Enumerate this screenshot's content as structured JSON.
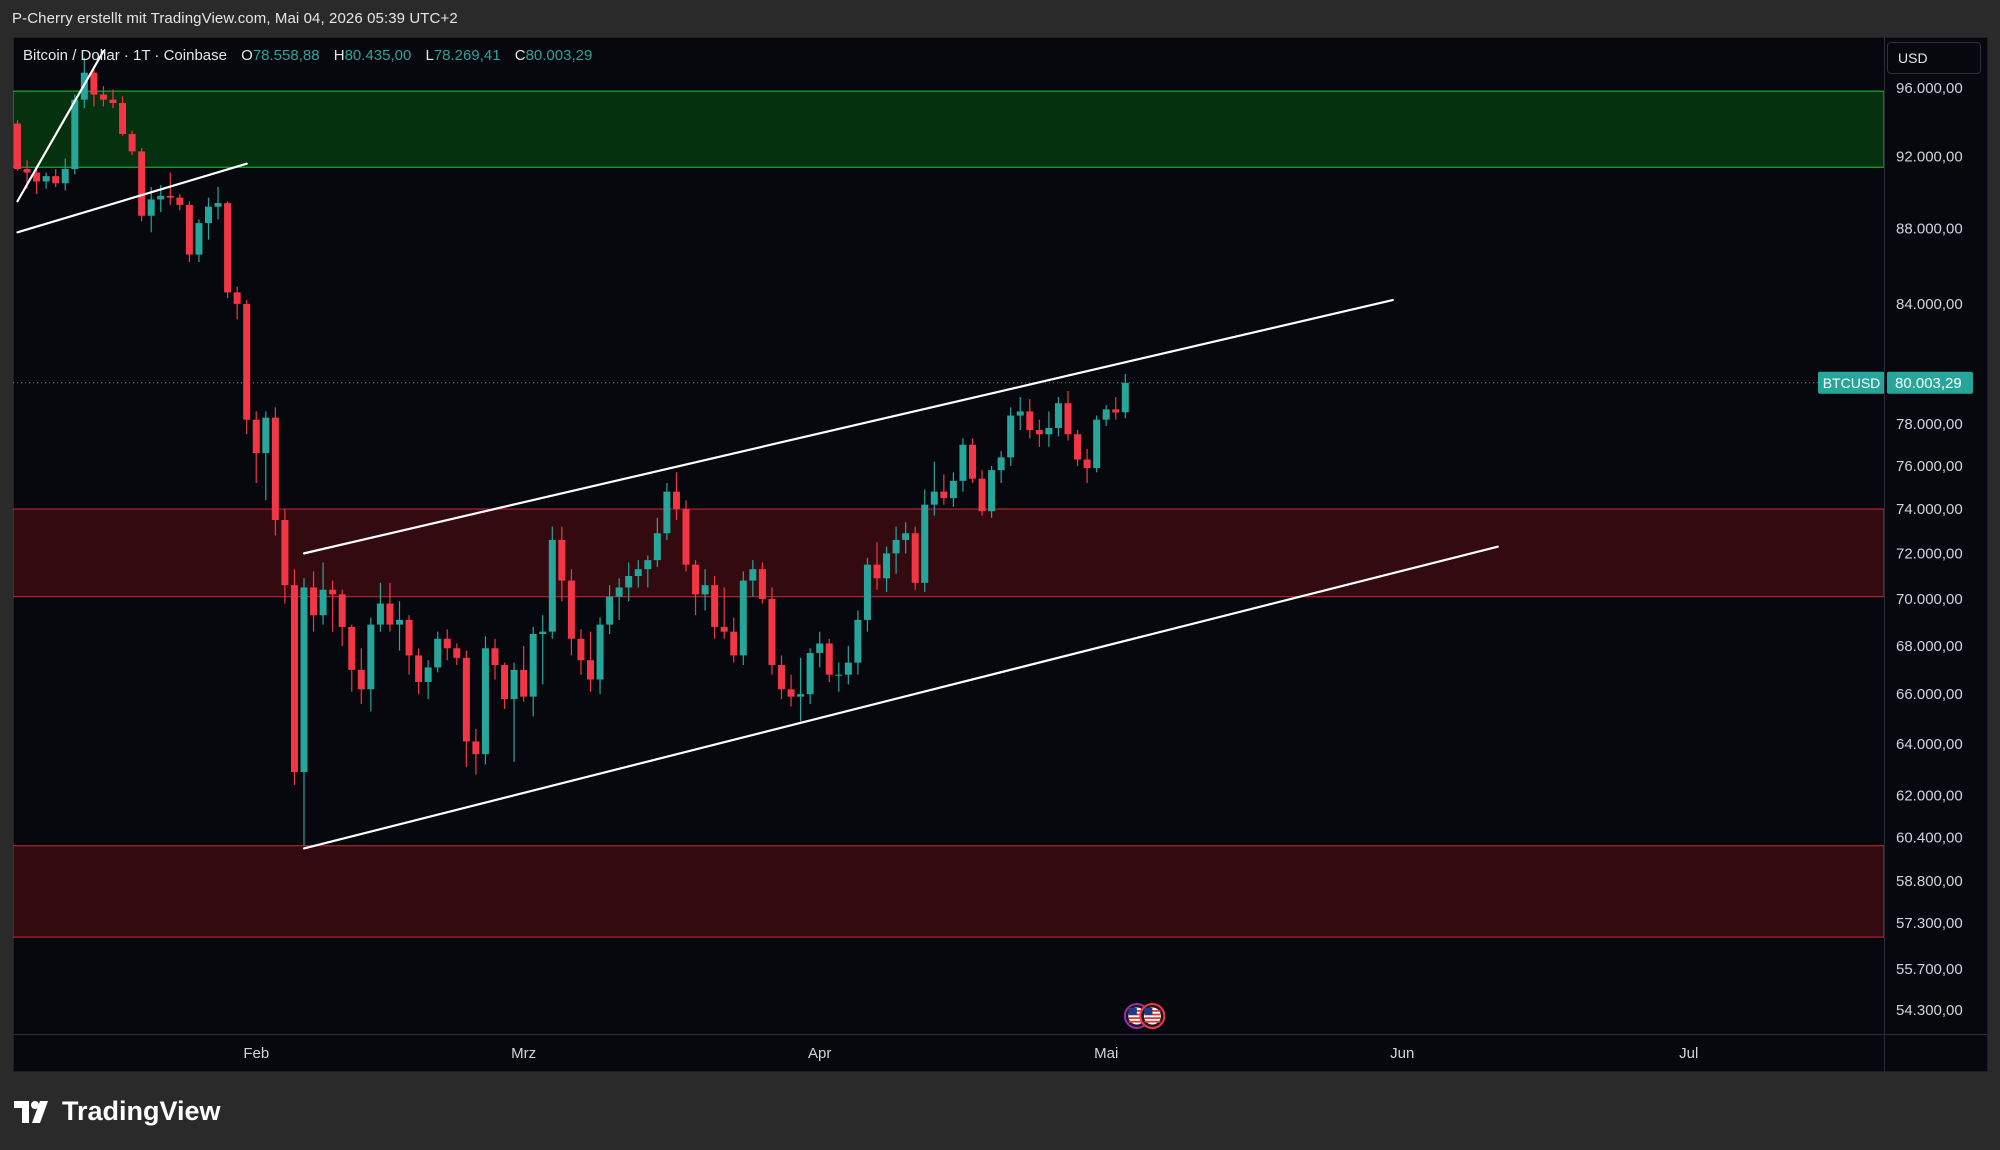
{
  "header": {
    "attribution": "P-Cherry erstellt mit TradingView.com, Mai 04, 2026 05:39 UTC+2"
  },
  "legend": {
    "symbol": "Bitcoin / Dollar · 1T · Coinbase",
    "open_label": "O",
    "open": "78.558,88",
    "high_label": "H",
    "high": "80.435,00",
    "low_label": "L",
    "low": "78.269,41",
    "close_label": "C",
    "close": "80.003,29"
  },
  "price_scale": {
    "currency": "USD",
    "ticks": [
      {
        "v": 96000,
        "label": "96.000,00"
      },
      {
        "v": 92000,
        "label": "92.000,00"
      },
      {
        "v": 88000,
        "label": "88.000,00"
      },
      {
        "v": 84000,
        "label": "84.000,00"
      },
      {
        "v": 78000,
        "label": "78.000,00"
      },
      {
        "v": 76000,
        "label": "76.000,00"
      },
      {
        "v": 74000,
        "label": "74.000,00"
      },
      {
        "v": 72000,
        "label": "72.000,00"
      },
      {
        "v": 70000,
        "label": "70.000,00"
      },
      {
        "v": 68000,
        "label": "68.000,00"
      },
      {
        "v": 66000,
        "label": "66.000,00"
      },
      {
        "v": 64000,
        "label": "64.000,00"
      },
      {
        "v": 62000,
        "label": "62.000,00"
      },
      {
        "v": 60400,
        "label": "60.400,00"
      },
      {
        "v": 58800,
        "label": "58.800,00"
      },
      {
        "v": 57300,
        "label": "57.300,00"
      },
      {
        "v": 55700,
        "label": "55.700,00"
      },
      {
        "v": 54300,
        "label": "54.300,00"
      }
    ],
    "last_price_symbol": "BTCUSD",
    "last_price_value": 80003.29,
    "last_price_label": "80.003,29"
  },
  "time_axis": [
    {
      "date": "2026-02-01",
      "label": "Feb"
    },
    {
      "date": "2026-03-01",
      "label": "Mrz"
    },
    {
      "date": "2026-04-01",
      "label": "Apr"
    },
    {
      "date": "2026-05-01",
      "label": "Mai"
    },
    {
      "date": "2026-06-01",
      "label": "Jun"
    },
    {
      "date": "2026-07-01",
      "label": "Jul"
    }
  ],
  "colors": {
    "up": "#26a69a",
    "down": "#f23645",
    "line": "#ffffff",
    "zone_green_fill": "#06310f",
    "zone_green_edge": "#1fa63a",
    "zone_red_fill": "#330a10",
    "zone_red_edge": "#b1232f",
    "price_tag": "#26a69a"
  },
  "footer": {
    "logo_text": "TradingView"
  },
  "chart_data": {
    "type": "candlestick",
    "symbol": "Bitcoin / Dollar",
    "interval": "1T",
    "exchange": "Coinbase",
    "scale": "log",
    "x_range": [
      "2026-01-07",
      "2026-07-31"
    ],
    "y_range": [
      53500,
      99000
    ],
    "ohlc": [
      {
        "date": "2026-01-07",
        "o": 93900,
        "h": 94100,
        "l": 91200,
        "c": 91300
      },
      {
        "date": "2026-01-08",
        "o": 91300,
        "h": 91800,
        "l": 90200,
        "c": 91100
      },
      {
        "date": "2026-01-09",
        "o": 91100,
        "h": 91500,
        "l": 89900,
        "c": 90600
      },
      {
        "date": "2026-01-10",
        "o": 90600,
        "h": 91100,
        "l": 90200,
        "c": 90900
      },
      {
        "date": "2026-01-11",
        "o": 90900,
        "h": 91300,
        "l": 90300,
        "c": 90500
      },
      {
        "date": "2026-01-12",
        "o": 90500,
        "h": 91900,
        "l": 90100,
        "c": 91300
      },
      {
        "date": "2026-01-13",
        "o": 91300,
        "h": 95600,
        "l": 91000,
        "c": 95300
      },
      {
        "date": "2026-01-14",
        "o": 95300,
        "h": 97800,
        "l": 94800,
        "c": 96900
      },
      {
        "date": "2026-01-15",
        "o": 96900,
        "h": 97300,
        "l": 94900,
        "c": 95600
      },
      {
        "date": "2026-01-16",
        "o": 95600,
        "h": 96100,
        "l": 94900,
        "c": 95300
      },
      {
        "date": "2026-01-17",
        "o": 95300,
        "h": 95900,
        "l": 94800,
        "c": 95100
      },
      {
        "date": "2026-01-18",
        "o": 95100,
        "h": 95500,
        "l": 93200,
        "c": 93300
      },
      {
        "date": "2026-01-19",
        "o": 93300,
        "h": 93500,
        "l": 92100,
        "c": 92300
      },
      {
        "date": "2026-01-20",
        "o": 92300,
        "h": 92500,
        "l": 88400,
        "c": 88700
      },
      {
        "date": "2026-01-21",
        "o": 88700,
        "h": 90300,
        "l": 87800,
        "c": 89600
      },
      {
        "date": "2026-01-22",
        "o": 89600,
        "h": 90400,
        "l": 88900,
        "c": 89800
      },
      {
        "date": "2026-01-23",
        "o": 89800,
        "h": 91100,
        "l": 89300,
        "c": 89700
      },
      {
        "date": "2026-01-24",
        "o": 89700,
        "h": 89900,
        "l": 89000,
        "c": 89300
      },
      {
        "date": "2026-01-25",
        "o": 89300,
        "h": 89500,
        "l": 86200,
        "c": 86600
      },
      {
        "date": "2026-01-26",
        "o": 86600,
        "h": 88500,
        "l": 86200,
        "c": 88300
      },
      {
        "date": "2026-01-27",
        "o": 88300,
        "h": 89700,
        "l": 87400,
        "c": 89200
      },
      {
        "date": "2026-01-28",
        "o": 89200,
        "h": 90300,
        "l": 88500,
        "c": 89400
      },
      {
        "date": "2026-01-29",
        "o": 89400,
        "h": 89500,
        "l": 84300,
        "c": 84600
      },
      {
        "date": "2026-01-30",
        "o": 84600,
        "h": 84900,
        "l": 83200,
        "c": 84000
      },
      {
        "date": "2026-01-31",
        "o": 84000,
        "h": 84200,
        "l": 77500,
        "c": 78200
      },
      {
        "date": "2026-02-01",
        "o": 78200,
        "h": 78600,
        "l": 75200,
        "c": 76600
      },
      {
        "date": "2026-02-02",
        "o": 76600,
        "h": 78600,
        "l": 74400,
        "c": 78300
      },
      {
        "date": "2026-02-03",
        "o": 78300,
        "h": 78800,
        "l": 72800,
        "c": 73500
      },
      {
        "date": "2026-02-04",
        "o": 73500,
        "h": 74000,
        "l": 69800,
        "c": 70600
      },
      {
        "date": "2026-02-05",
        "o": 70600,
        "h": 71300,
        "l": 62400,
        "c": 62900
      },
      {
        "date": "2026-02-06",
        "o": 62900,
        "h": 70900,
        "l": 60100,
        "c": 70500
      },
      {
        "date": "2026-02-07",
        "o": 70500,
        "h": 71200,
        "l": 68600,
        "c": 69300
      },
      {
        "date": "2026-02-08",
        "o": 69300,
        "h": 71600,
        "l": 68900,
        "c": 70400
      },
      {
        "date": "2026-02-09",
        "o": 70400,
        "h": 70800,
        "l": 68600,
        "c": 70200
      },
      {
        "date": "2026-02-10",
        "o": 70200,
        "h": 70400,
        "l": 68000,
        "c": 68800
      },
      {
        "date": "2026-02-11",
        "o": 68800,
        "h": 68900,
        "l": 66100,
        "c": 67000
      },
      {
        "date": "2026-02-12",
        "o": 67000,
        "h": 67900,
        "l": 65600,
        "c": 66200
      },
      {
        "date": "2026-02-13",
        "o": 66200,
        "h": 69200,
        "l": 65300,
        "c": 68900
      },
      {
        "date": "2026-02-14",
        "o": 68900,
        "h": 70700,
        "l": 68600,
        "c": 69800
      },
      {
        "date": "2026-02-15",
        "o": 69800,
        "h": 70700,
        "l": 68600,
        "c": 68900
      },
      {
        "date": "2026-02-16",
        "o": 68900,
        "h": 69900,
        "l": 67800,
        "c": 69100
      },
      {
        "date": "2026-02-17",
        "o": 69100,
        "h": 69300,
        "l": 66800,
        "c": 67600
      },
      {
        "date": "2026-02-18",
        "o": 67600,
        "h": 67900,
        "l": 66000,
        "c": 66500
      },
      {
        "date": "2026-02-19",
        "o": 66500,
        "h": 67400,
        "l": 65800,
        "c": 67100
      },
      {
        "date": "2026-02-20",
        "o": 67100,
        "h": 68600,
        "l": 66900,
        "c": 68300
      },
      {
        "date": "2026-02-21",
        "o": 68300,
        "h": 68700,
        "l": 67400,
        "c": 67900
      },
      {
        "date": "2026-02-22",
        "o": 67900,
        "h": 68100,
        "l": 67200,
        "c": 67500
      },
      {
        "date": "2026-02-23",
        "o": 67500,
        "h": 67800,
        "l": 63100,
        "c": 64100
      },
      {
        "date": "2026-02-24",
        "o": 64100,
        "h": 64600,
        "l": 62800,
        "c": 63600
      },
      {
        "date": "2026-02-25",
        "o": 63600,
        "h": 68400,
        "l": 63200,
        "c": 67900
      },
      {
        "date": "2026-02-26",
        "o": 67900,
        "h": 68300,
        "l": 66600,
        "c": 67200
      },
      {
        "date": "2026-02-27",
        "o": 67200,
        "h": 67300,
        "l": 65400,
        "c": 65800
      },
      {
        "date": "2026-02-28",
        "o": 65800,
        "h": 67300,
        "l": 63300,
        "c": 67000
      },
      {
        "date": "2026-03-01",
        "o": 67000,
        "h": 68000,
        "l": 65700,
        "c": 65900
      },
      {
        "date": "2026-03-02",
        "o": 65900,
        "h": 68800,
        "l": 65100,
        "c": 68500
      },
      {
        "date": "2026-03-03",
        "o": 68500,
        "h": 69300,
        "l": 66400,
        "c": 68600
      },
      {
        "date": "2026-03-04",
        "o": 68600,
        "h": 73200,
        "l": 68300,
        "c": 72600
      },
      {
        "date": "2026-03-05",
        "o": 72600,
        "h": 73200,
        "l": 69900,
        "c": 70800
      },
      {
        "date": "2026-03-06",
        "o": 70800,
        "h": 71300,
        "l": 67600,
        "c": 68300
      },
      {
        "date": "2026-03-07",
        "o": 68300,
        "h": 68700,
        "l": 66800,
        "c": 67400
      },
      {
        "date": "2026-03-08",
        "o": 67400,
        "h": 68600,
        "l": 66100,
        "c": 66600
      },
      {
        "date": "2026-03-09",
        "o": 66600,
        "h": 69200,
        "l": 66000,
        "c": 68900
      },
      {
        "date": "2026-03-10",
        "o": 68900,
        "h": 70600,
        "l": 68500,
        "c": 70100
      },
      {
        "date": "2026-03-11",
        "o": 70100,
        "h": 70900,
        "l": 69100,
        "c": 70500
      },
      {
        "date": "2026-03-12",
        "o": 70500,
        "h": 71600,
        "l": 69900,
        "c": 71000
      },
      {
        "date": "2026-03-13",
        "o": 71000,
        "h": 71700,
        "l": 70500,
        "c": 71300
      },
      {
        "date": "2026-03-14",
        "o": 71300,
        "h": 71900,
        "l": 70500,
        "c": 71700
      },
      {
        "date": "2026-03-15",
        "o": 71700,
        "h": 73600,
        "l": 71400,
        "c": 72900
      },
      {
        "date": "2026-03-16",
        "o": 72900,
        "h": 75200,
        "l": 72600,
        "c": 74800
      },
      {
        "date": "2026-03-17",
        "o": 74800,
        "h": 75700,
        "l": 73500,
        "c": 74000
      },
      {
        "date": "2026-03-18",
        "o": 74000,
        "h": 74400,
        "l": 71200,
        "c": 71500
      },
      {
        "date": "2026-03-19",
        "o": 71500,
        "h": 71700,
        "l": 69300,
        "c": 70200
      },
      {
        "date": "2026-03-20",
        "o": 70200,
        "h": 71300,
        "l": 69500,
        "c": 70600
      },
      {
        "date": "2026-03-21",
        "o": 70600,
        "h": 71000,
        "l": 68300,
        "c": 68800
      },
      {
        "date": "2026-03-22",
        "o": 68800,
        "h": 70500,
        "l": 68300,
        "c": 68600
      },
      {
        "date": "2026-03-23",
        "o": 68600,
        "h": 69200,
        "l": 67300,
        "c": 67600
      },
      {
        "date": "2026-03-24",
        "o": 67600,
        "h": 71200,
        "l": 67200,
        "c": 70800
      },
      {
        "date": "2026-03-25",
        "o": 70800,
        "h": 71700,
        "l": 70100,
        "c": 71300
      },
      {
        "date": "2026-03-26",
        "o": 71300,
        "h": 71600,
        "l": 69800,
        "c": 70000
      },
      {
        "date": "2026-03-27",
        "o": 70000,
        "h": 70500,
        "l": 66800,
        "c": 67200
      },
      {
        "date": "2026-03-28",
        "o": 67200,
        "h": 67600,
        "l": 65800,
        "c": 66200
      },
      {
        "date": "2026-03-29",
        "o": 66200,
        "h": 66800,
        "l": 65500,
        "c": 65900
      },
      {
        "date": "2026-03-30",
        "o": 65900,
        "h": 67500,
        "l": 64900,
        "c": 66000
      },
      {
        "date": "2026-03-31",
        "o": 66000,
        "h": 67900,
        "l": 65600,
        "c": 67700
      },
      {
        "date": "2026-04-01",
        "o": 67700,
        "h": 68600,
        "l": 67100,
        "c": 68100
      },
      {
        "date": "2026-04-02",
        "o": 68100,
        "h": 68300,
        "l": 66500,
        "c": 66800
      },
      {
        "date": "2026-04-03",
        "o": 66800,
        "h": 67300,
        "l": 66100,
        "c": 66800
      },
      {
        "date": "2026-04-04",
        "o": 66800,
        "h": 68000,
        "l": 66400,
        "c": 67300
      },
      {
        "date": "2026-04-05",
        "o": 67300,
        "h": 69500,
        "l": 66800,
        "c": 69100
      },
      {
        "date": "2026-04-06",
        "o": 69100,
        "h": 71800,
        "l": 68600,
        "c": 71500
      },
      {
        "date": "2026-04-07",
        "o": 71500,
        "h": 72500,
        "l": 70400,
        "c": 70900
      },
      {
        "date": "2026-04-08",
        "o": 70900,
        "h": 72300,
        "l": 70300,
        "c": 72000
      },
      {
        "date": "2026-04-09",
        "o": 72000,
        "h": 73200,
        "l": 71100,
        "c": 72600
      },
      {
        "date": "2026-04-10",
        "o": 72600,
        "h": 73400,
        "l": 72000,
        "c": 72900
      },
      {
        "date": "2026-04-11",
        "o": 72900,
        "h": 73200,
        "l": 70400,
        "c": 70700
      },
      {
        "date": "2026-04-12",
        "o": 70700,
        "h": 74900,
        "l": 70300,
        "c": 74200
      },
      {
        "date": "2026-04-13",
        "o": 74200,
        "h": 76200,
        "l": 73700,
        "c": 74800
      },
      {
        "date": "2026-04-14",
        "o": 74800,
        "h": 75600,
        "l": 74200,
        "c": 74500
      },
      {
        "date": "2026-04-15",
        "o": 74500,
        "h": 75700,
        "l": 74100,
        "c": 75300
      },
      {
        "date": "2026-04-16",
        "o": 75300,
        "h": 77300,
        "l": 74800,
        "c": 77000
      },
      {
        "date": "2026-04-17",
        "o": 77000,
        "h": 77300,
        "l": 75200,
        "c": 75400
      },
      {
        "date": "2026-04-18",
        "o": 75400,
        "h": 75800,
        "l": 73700,
        "c": 73900
      },
      {
        "date": "2026-04-19",
        "o": 73900,
        "h": 76000,
        "l": 73600,
        "c": 75800
      },
      {
        "date": "2026-04-20",
        "o": 75800,
        "h": 76700,
        "l": 75200,
        "c": 76400
      },
      {
        "date": "2026-04-21",
        "o": 76400,
        "h": 78800,
        "l": 76000,
        "c": 78400
      },
      {
        "date": "2026-04-22",
        "o": 78400,
        "h": 79300,
        "l": 77700,
        "c": 78600
      },
      {
        "date": "2026-04-23",
        "o": 78600,
        "h": 79200,
        "l": 77300,
        "c": 77700
      },
      {
        "date": "2026-04-24",
        "o": 77700,
        "h": 78200,
        "l": 76900,
        "c": 77500
      },
      {
        "date": "2026-04-25",
        "o": 77500,
        "h": 78600,
        "l": 76900,
        "c": 77800
      },
      {
        "date": "2026-04-26",
        "o": 77800,
        "h": 79300,
        "l": 77400,
        "c": 79000
      },
      {
        "date": "2026-04-27",
        "o": 79000,
        "h": 79600,
        "l": 77200,
        "c": 77500
      },
      {
        "date": "2026-04-28",
        "o": 77500,
        "h": 77700,
        "l": 76000,
        "c": 76300
      },
      {
        "date": "2026-04-29",
        "o": 76300,
        "h": 76800,
        "l": 75200,
        "c": 75900
      },
      {
        "date": "2026-04-30",
        "o": 75900,
        "h": 78400,
        "l": 75700,
        "c": 78200
      },
      {
        "date": "2026-05-01",
        "o": 78200,
        "h": 78900,
        "l": 77900,
        "c": 78700
      },
      {
        "date": "2026-05-02",
        "o": 78700,
        "h": 79300,
        "l": 78200,
        "c": 78550
      },
      {
        "date": "2026-05-03",
        "o": 78558.88,
        "h": 80435.0,
        "l": 78269.41,
        "c": 80003.29
      }
    ],
    "zones": [
      {
        "kind": "supply",
        "from": 91400,
        "to": 95800
      },
      {
        "kind": "demand",
        "from": 70100,
        "to": 74000
      },
      {
        "kind": "demand",
        "from": 56800,
        "to": 60100
      }
    ],
    "trendlines": [
      {
        "from": {
          "date": "2026-01-07",
          "price": 89500
        },
        "to": {
          "date": "2026-01-16",
          "price": 98200
        }
      },
      {
        "from": {
          "date": "2026-01-07",
          "price": 87800
        },
        "to": {
          "date": "2026-01-31",
          "price": 91600
        }
      },
      {
        "from": {
          "date": "2026-02-06",
          "price": 72000
        },
        "to": {
          "date": "2026-05-31",
          "price": 84200
        }
      },
      {
        "from": {
          "date": "2026-02-06",
          "price": 60000
        },
        "to": {
          "date": "2026-06-11",
          "price": 72300
        }
      }
    ],
    "event_markers": [
      {
        "date": "2026-05-04",
        "icon": "us-flag-icon"
      },
      {
        "date": "2026-05-05",
        "icon": "us-flag-icon"
      }
    ],
    "xlabel": "",
    "ylabel": ""
  }
}
